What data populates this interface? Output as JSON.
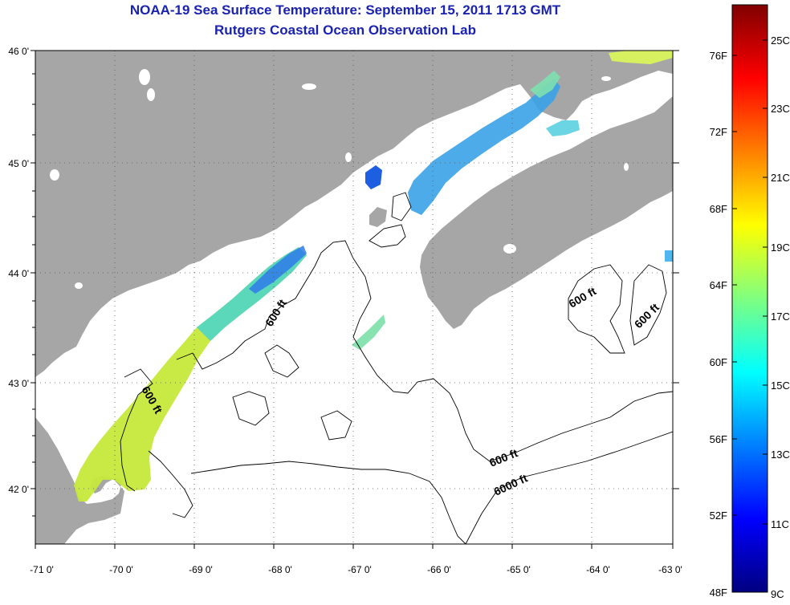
{
  "title": "NOAA-19 Sea Surface Temperature:  September 15, 2011 1713 GMT",
  "subtitle": "Rutgers Coastal Ocean Observation Lab",
  "map": {
    "lon_ticks": [
      "-71 0'",
      "-70 0'",
      "-69 0'",
      "-68 0'",
      "-67 0'",
      "-66 0'",
      "-65 0'",
      "-64 0'",
      "-63 0'"
    ],
    "lat_ticks": [
      "46 0'",
      "45 0'",
      "44 0'",
      "43 0'",
      "42 0'"
    ],
    "grid": "dotted",
    "land_color": "#a6a6a6",
    "contour_labels": [
      "600 ft",
      "600 ft",
      "600 ft",
      "600 ft",
      "600 ft",
      "6000 ft"
    ]
  },
  "colorbar": {
    "fahrenheit_labels": [
      "76F",
      "72F",
      "68F",
      "64F",
      "60F",
      "56F",
      "52F",
      "48F"
    ],
    "celsius_labels": [
      "25C",
      "23C",
      "21C",
      "19C",
      "17C",
      "15C",
      "13C",
      "11C",
      "9C"
    ]
  }
}
